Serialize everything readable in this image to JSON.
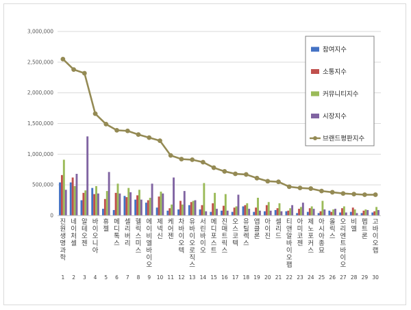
{
  "chart_data": {
    "type": "bar",
    "categories": [
      "진원생명과학",
      "네이처셀",
      "알테오젠",
      "바이오니아",
      "휴젤",
      "메디톡스",
      "셀리버리",
      "헬릭스미스",
      "에이비엘바이오",
      "제넥신",
      "케어젠",
      "차바이오텍",
      "유바이오로직스",
      "서린바이오",
      "메디포스트",
      "진매트릭스",
      "오스코텍",
      "유틸렉스",
      "앱클론",
      "아이진",
      "셀리드",
      "티앤알바이오팹",
      "아미코젠",
      "제노포커스",
      "아시아종묘",
      "올릭스",
      "오리엔트바이오",
      "비엘",
      "펩트론",
      "고바이오랩"
    ],
    "category_numbers": [
      "1",
      "2",
      "3",
      "4",
      "5",
      "6",
      "7",
      "8",
      "9",
      "10",
      "11",
      "12",
      "13",
      "14",
      "15",
      "16",
      "17",
      "18",
      "19",
      "20",
      "21",
      "22",
      "23",
      "24",
      "25",
      "26",
      "27",
      "28",
      "29",
      "30"
    ],
    "ylim": [
      0,
      3000000
    ],
    "yticks": [
      "0",
      "500,000",
      "1,000,000",
      "1,500,000",
      "2,000,000",
      "2,500,000",
      "3,000,000"
    ],
    "ytick_values": [
      0,
      500000,
      1000000,
      1500000,
      2000000,
      2500000,
      3000000
    ],
    "grid": true,
    "legend_position": "top-right",
    "series": [
      {
        "name": "참여지수",
        "kind": "bar",
        "color": "#4472c4",
        "values": [
          540000,
          540000,
          250000,
          450000,
          110000,
          90000,
          320000,
          260000,
          210000,
          130000,
          80000,
          100000,
          170000,
          100000,
          60000,
          80000,
          60000,
          150000,
          60000,
          70000,
          90000,
          70000,
          40000,
          60000,
          40000,
          80000,
          50000,
          60000,
          40000,
          50000
        ]
      },
      {
        "name": "소통지수",
        "kind": "bar",
        "color": "#c0504d",
        "values": [
          660000,
          620000,
          370000,
          350000,
          270000,
          370000,
          300000,
          330000,
          250000,
          310000,
          120000,
          240000,
          220000,
          170000,
          200000,
          160000,
          130000,
          170000,
          130000,
          170000,
          120000,
          80000,
          110000,
          120000,
          70000,
          60000,
          120000,
          130000,
          80000,
          70000
        ]
      },
      {
        "name": "커뮤니티지수",
        "kind": "bar",
        "color": "#9bbb59",
        "values": [
          910000,
          480000,
          410000,
          480000,
          400000,
          520000,
          450000,
          420000,
          290000,
          390000,
          180000,
          180000,
          240000,
          530000,
          370000,
          350000,
          150000,
          200000,
          290000,
          220000,
          200000,
          120000,
          140000,
          150000,
          240000,
          100000,
          150000,
          100000,
          100000,
          140000
        ]
      },
      {
        "name": "시장지수",
        "kind": "bar",
        "color": "#8064a2",
        "values": [
          420000,
          680000,
          1290000,
          360000,
          710000,
          360000,
          380000,
          260000,
          520000,
          360000,
          620000,
          400000,
          250000,
          70000,
          110000,
          80000,
          340000,
          110000,
          80000,
          80000,
          70000,
          170000,
          210000,
          110000,
          100000,
          110000,
          50000,
          40000,
          90000,
          90000
        ]
      },
      {
        "name": "브랜드평판지수",
        "kind": "line",
        "color": "#948a54",
        "values": [
          2550000,
          2380000,
          2320000,
          1660000,
          1490000,
          1390000,
          1380000,
          1320000,
          1270000,
          1220000,
          980000,
          920000,
          910000,
          870000,
          780000,
          720000,
          680000,
          670000,
          610000,
          560000,
          550000,
          470000,
          450000,
          440000,
          400000,
          380000,
          360000,
          350000,
          340000,
          340000
        ]
      }
    ]
  }
}
